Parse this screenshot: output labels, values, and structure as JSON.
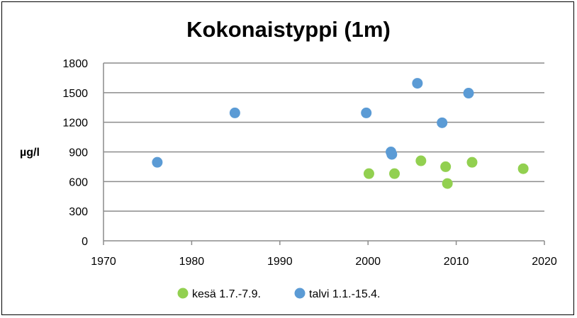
{
  "chart_data": {
    "type": "scatter",
    "title": "Kokonaistyppi (1m)",
    "ylabel": "µg/l",
    "xlabel": "",
    "xlim": [
      1970,
      2020
    ],
    "ylim": [
      0,
      1800
    ],
    "xticks": [
      "1970",
      "1980",
      "1990",
      "2000",
      "2010",
      "2020"
    ],
    "yticks": [
      "0",
      "300",
      "600",
      "900",
      "1200",
      "1500",
      "1800"
    ],
    "grid": "horizontal",
    "legend_position": "bottom",
    "series": [
      {
        "name": "kesä 1.7.-7.9.",
        "color": "#92d050",
        "points": [
          {
            "x": 2000.1,
            "y": 680
          },
          {
            "x": 2003.0,
            "y": 680
          },
          {
            "x": 2006.0,
            "y": 810
          },
          {
            "x": 2008.8,
            "y": 750
          },
          {
            "x": 2009.0,
            "y": 580
          },
          {
            "x": 2011.8,
            "y": 795
          },
          {
            "x": 2017.6,
            "y": 730
          }
        ]
      },
      {
        "name": "talvi 1.1.-15.4.",
        "color": "#5b9bd5",
        "points": [
          {
            "x": 1976.1,
            "y": 795
          },
          {
            "x": 1984.9,
            "y": 1295
          },
          {
            "x": 1999.8,
            "y": 1295
          },
          {
            "x": 2002.6,
            "y": 900
          },
          {
            "x": 2002.7,
            "y": 875
          },
          {
            "x": 2005.6,
            "y": 1595
          },
          {
            "x": 2008.4,
            "y": 1195
          },
          {
            "x": 2011.4,
            "y": 1495
          }
        ]
      }
    ]
  }
}
